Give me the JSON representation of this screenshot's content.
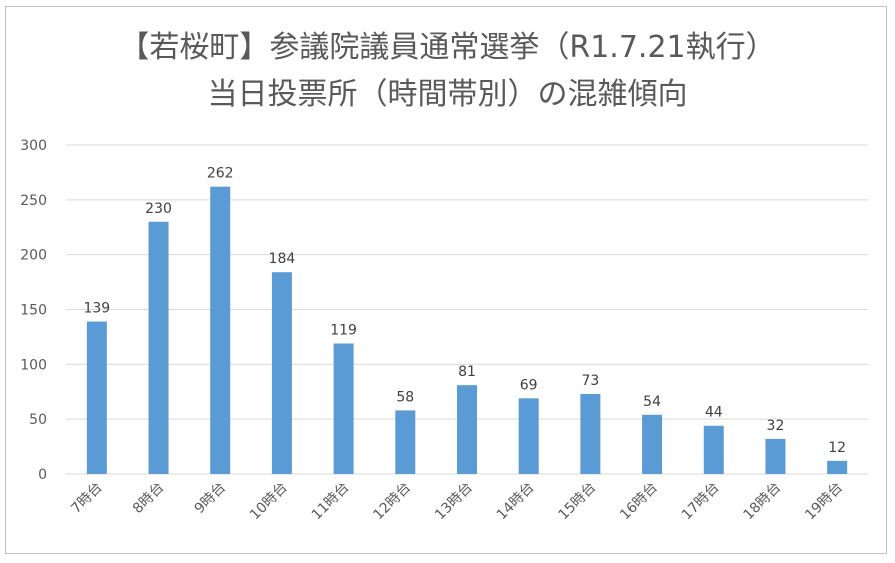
{
  "chart_data": {
    "type": "bar",
    "title": "【若桜町】参議院議員通常選挙（R1.7.21執行）",
    "subtitle": "当日投票所（時間帯別）の混雑傾向",
    "categories": [
      "7時台",
      "8時台",
      "9時台",
      "10時台",
      "11時台",
      "12時台",
      "13時台",
      "14時台",
      "15時台",
      "16時台",
      "17時台",
      "18時台",
      "19時台"
    ],
    "values": [
      139,
      230,
      262,
      184,
      119,
      58,
      81,
      69,
      73,
      54,
      44,
      32,
      12
    ],
    "yticks": [
      0,
      50,
      100,
      150,
      200,
      250,
      300
    ],
    "ylim": [
      0,
      300
    ],
    "xlabel": "",
    "ylabel": "",
    "grid": true,
    "legend": "none",
    "data_labels": true,
    "bar_color": "#5b9bd5",
    "grid_color": "#d9d9d9"
  }
}
